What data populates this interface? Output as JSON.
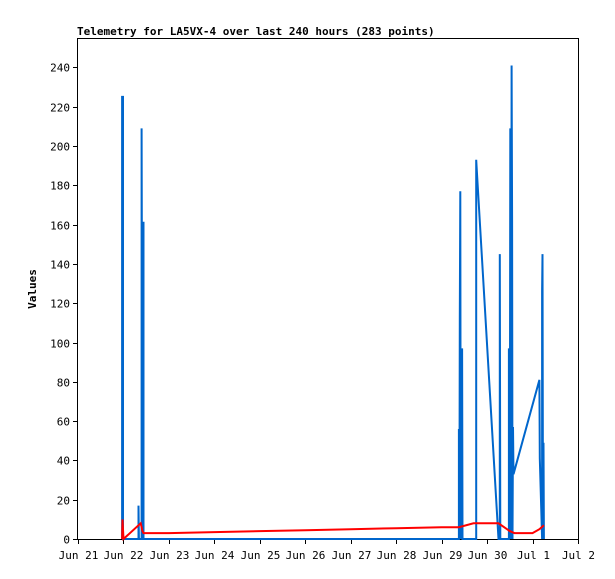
{
  "chart_data": {
    "type": "line",
    "title": "Telemetry for LA5VX-4 over last 240 hours (283 points)",
    "xlabel": "",
    "ylabel": "Values",
    "x_unit": "days since Jun 21 00:00",
    "xlim": [
      0,
      11
    ],
    "ylim": [
      0,
      255
    ],
    "x_tick_labels": [
      "Jun 21",
      "Jun 22",
      "Jun 23",
      "Jun 24",
      "Jun 25",
      "Jun 26",
      "Jun 27",
      "Jun 28",
      "Jun 29",
      "Jun 30",
      "Jul 1",
      "Jul 2"
    ],
    "x_tick_positions": [
      0,
      1,
      2,
      3,
      4,
      5,
      6,
      7,
      8,
      9,
      10,
      11
    ],
    "y_ticks": [
      0,
      20,
      40,
      60,
      80,
      100,
      120,
      140,
      160,
      180,
      200,
      220,
      240
    ],
    "grid": false,
    "legend": "none",
    "series": [
      {
        "color": "#0066cc",
        "points": [
          [
            0.97,
            0
          ],
          [
            0.97,
            225
          ],
          [
            0.99,
            225
          ],
          [
            0.99,
            0
          ],
          [
            1.33,
            0
          ],
          [
            1.33,
            17
          ],
          [
            1.34,
            0
          ],
          [
            1.4,
            0
          ],
          [
            1.4,
            209
          ],
          [
            1.42,
            0
          ],
          [
            1.42,
            161
          ],
          [
            1.44,
            161
          ],
          [
            1.44,
            0
          ],
          [
            8.38,
            0
          ],
          [
            8.38,
            56
          ],
          [
            8.39,
            0
          ],
          [
            8.4,
            113
          ],
          [
            8.41,
            177
          ],
          [
            8.42,
            0
          ],
          [
            8.43,
            81
          ],
          [
            8.44,
            0
          ],
          [
            8.45,
            97
          ],
          [
            8.46,
            0
          ],
          [
            8.76,
            0
          ],
          [
            8.76,
            193
          ],
          [
            8.78,
            185
          ],
          [
            9.25,
            0
          ],
          [
            9.28,
            0
          ],
          [
            9.28,
            145
          ],
          [
            9.29,
            0
          ],
          [
            9.48,
            0
          ],
          [
            9.48,
            97
          ],
          [
            9.5,
            0
          ],
          [
            9.51,
            209
          ],
          [
            9.53,
            0
          ],
          [
            9.54,
            241
          ],
          [
            9.55,
            161
          ],
          [
            9.56,
            0
          ],
          [
            9.57,
            57
          ],
          [
            9.58,
            33
          ],
          [
            10.15,
            81
          ],
          [
            10.16,
            41
          ],
          [
            10.21,
            0
          ],
          [
            10.21,
            126
          ],
          [
            10.22,
            145
          ],
          [
            10.23,
            0
          ],
          [
            10.24,
            49
          ],
          [
            10.25,
            0
          ]
        ]
      },
      {
        "color": "#ff0000",
        "points": [
          [
            0.97,
            0
          ],
          [
            0.98,
            10
          ],
          [
            1.0,
            0
          ],
          [
            1.38,
            8
          ],
          [
            1.42,
            4
          ],
          [
            1.44,
            3
          ],
          [
            2.0,
            3
          ],
          [
            3.0,
            3.5
          ],
          [
            4.0,
            4
          ],
          [
            5.0,
            4.5
          ],
          [
            6.0,
            5
          ],
          [
            7.0,
            5.5
          ],
          [
            8.0,
            6
          ],
          [
            8.38,
            6
          ],
          [
            8.7,
            8
          ],
          [
            9.25,
            8
          ],
          [
            9.5,
            4
          ],
          [
            9.6,
            3
          ],
          [
            10.0,
            3
          ],
          [
            10.15,
            5
          ],
          [
            10.25,
            7
          ]
        ]
      }
    ]
  }
}
